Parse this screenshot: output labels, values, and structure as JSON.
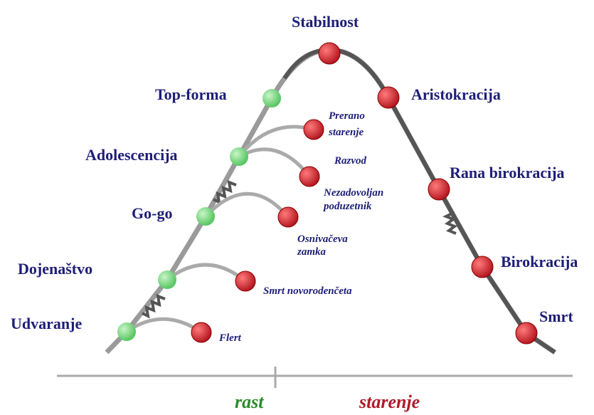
{
  "stages": [
    "Udvaranje",
    "Dojenaštvo",
    "Go-go",
    "Adolescencija",
    "Top-forma",
    "Stabilnost",
    "Aristokracija",
    "Rana birokracija",
    "Birokracija",
    "Smrt"
  ],
  "failures": [
    [
      "Flert"
    ],
    [
      "Smrt novorodenčeta"
    ],
    [
      "Osnivačeva",
      "zamka"
    ],
    [
      "Nezadovoljan",
      "poduzetnik"
    ],
    [
      "Razvod"
    ],
    [
      "Prerano",
      "starenje"
    ]
  ],
  "axis": {
    "left": "rast",
    "right": "starenje"
  }
}
